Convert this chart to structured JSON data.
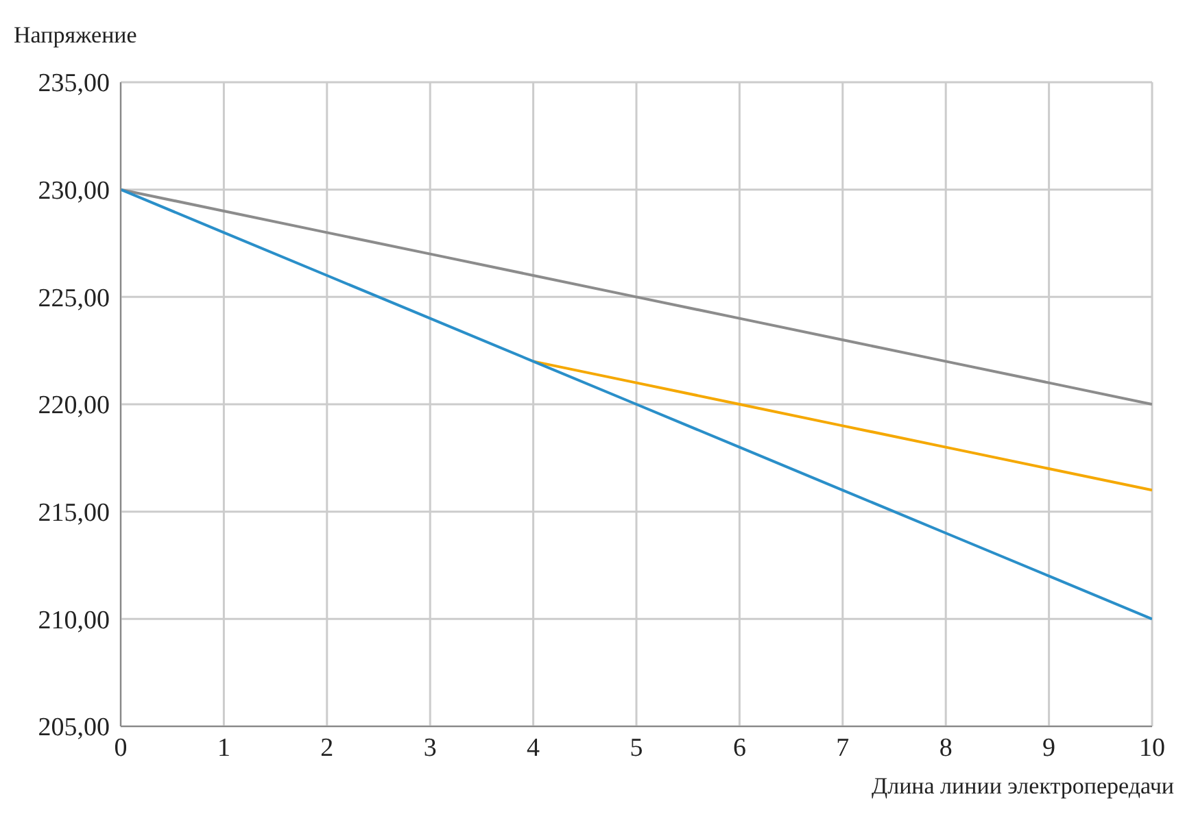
{
  "chart_data": {
    "type": "line",
    "xlabel": "Длина линии электропередачи",
    "ylabel": "Напряжение",
    "x": [
      0,
      1,
      2,
      3,
      4,
      5,
      6,
      7,
      8,
      9,
      10
    ],
    "series": [
      {
        "color": "#8c8c8c",
        "values": [
          230,
          229,
          228,
          227,
          226,
          225,
          224,
          223,
          222,
          221,
          220
        ]
      },
      {
        "color": "#f5a800",
        "values": [
          null,
          null,
          null,
          null,
          222,
          221,
          220,
          219,
          218,
          217,
          216
        ]
      },
      {
        "color": "#2a8fc9",
        "values": [
          230,
          228,
          226,
          224,
          222,
          220,
          218,
          216,
          214,
          212,
          210
        ]
      }
    ],
    "xlim": [
      0,
      10
    ],
    "xticks": [
      0,
      1,
      2,
      3,
      4,
      5,
      6,
      7,
      8,
      9,
      10
    ],
    "ylim": [
      205,
      235
    ],
    "yticks": [
      {
        "value": 205,
        "label": "205,00"
      },
      {
        "value": 210,
        "label": "210,00"
      },
      {
        "value": 215,
        "label": "215,00"
      },
      {
        "value": 220,
        "label": "220,00"
      },
      {
        "value": 225,
        "label": "225,00"
      },
      {
        "value": 230,
        "label": "230,00"
      },
      {
        "value": 235,
        "label": "235,00"
      }
    ],
    "grid": true
  }
}
